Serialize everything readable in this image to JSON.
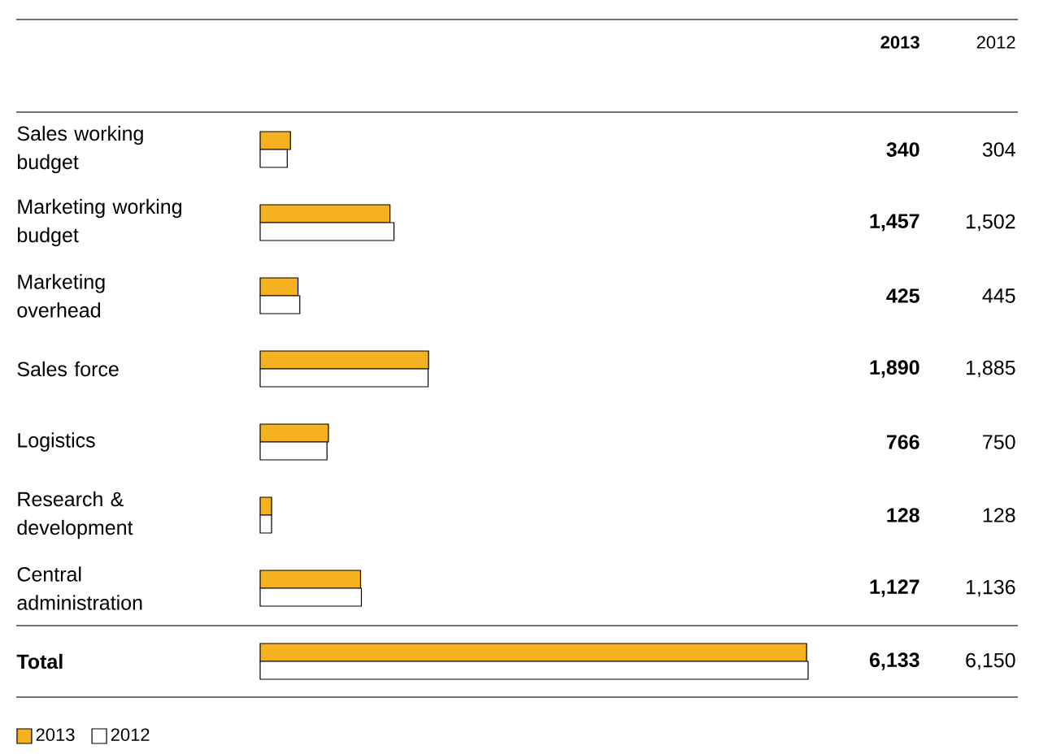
{
  "chart_data": {
    "type": "bar",
    "orientation": "horizontal",
    "categories": [
      "Sales working budget",
      "Marketing working budget",
      "Marketing overhead",
      "Sales force",
      "Logistics",
      "Research & development",
      "Central administration",
      "Total"
    ],
    "series": [
      {
        "name": "2013",
        "color": "#f5b120",
        "values": [
          340,
          1457,
          425,
          1890,
          766,
          128,
          1127,
          6133
        ],
        "value_labels": [
          "340",
          "1,457",
          "425",
          "1,890",
          "766",
          "128",
          "1,127",
          "6,133"
        ]
      },
      {
        "name": "2012",
        "color": "#ffffff",
        "values": [
          304,
          1502,
          445,
          1885,
          750,
          128,
          1136,
          6150
        ],
        "value_labels": [
          "304",
          "1,502",
          "445",
          "1,885",
          "750",
          "128",
          "1,136",
          "6,150"
        ]
      }
    ],
    "legend": "bottom left"
  }
}
